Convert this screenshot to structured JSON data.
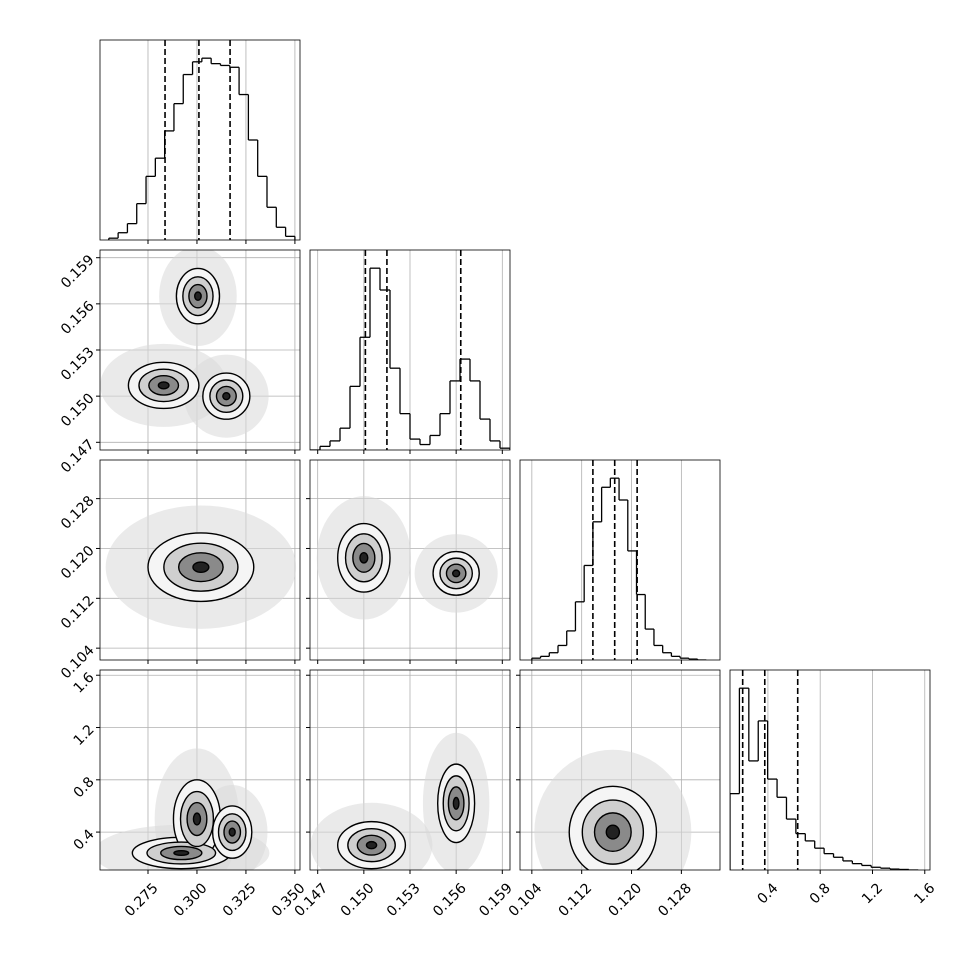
{
  "chart_data": {
    "type": "corner",
    "params": [
      {
        "lim": [
          0.2505,
          0.3526
        ],
        "ticks": [
          0.275,
          {
            "value": 0.3,
            "label": "0.300"
          },
          0.325,
          {
            "value": 0.35,
            "label": "0.350"
          }
        ]
      },
      {
        "lim": [
          0.1465,
          0.1595
        ],
        "ticks": [
          0.147,
          {
            "value": 0.15,
            "label": "0.150"
          },
          0.153,
          0.156,
          0.159
        ]
      },
      {
        "lim": [
          0.1021,
          0.1342
        ],
        "ticks": [
          0.104,
          0.112,
          {
            "value": 0.12,
            "label": "0.120"
          },
          0.128
        ]
      },
      {
        "lim": [
          0.11,
          1.64
        ],
        "ticks": [
          0.4,
          0.8,
          1.2,
          1.6
        ]
      }
    ],
    "histograms": [
      {
        "ylim": [
          0,
          1.1
        ],
        "bins": [
          0.255,
          0.25975,
          0.2645,
          0.26925,
          0.274,
          0.27875,
          0.2835,
          0.28825,
          0.293,
          0.29775,
          0.3025,
          0.30725,
          0.312,
          0.31675,
          0.3215,
          0.32625,
          0.331,
          0.33575,
          0.3405,
          0.34525,
          0.35
        ],
        "counts": [
          0.01,
          0.04,
          0.09,
          0.2,
          0.35,
          0.45,
          0.6,
          0.75,
          0.91,
          0.98,
          1.0,
          0.97,
          0.96,
          0.95,
          0.8,
          0.55,
          0.35,
          0.18,
          0.07,
          0.02
        ],
        "quantiles": [
          0.2837,
          0.301,
          0.3169
        ]
      },
      {
        "ylim": [
          0,
          1.1
        ],
        "bins": [
          0.1465,
          0.14715,
          0.1478,
          0.14845,
          0.1491,
          0.14975,
          0.1504,
          0.15105,
          0.1517,
          0.15235,
          0.153,
          0.15365,
          0.1543,
          0.15495,
          0.1556,
          0.15625,
          0.1569,
          0.15755,
          0.1582,
          0.15885,
          0.1595
        ],
        "counts": [
          0.0,
          0.02,
          0.05,
          0.12,
          0.35,
          0.62,
          1.0,
          0.88,
          0.45,
          0.2,
          0.06,
          0.03,
          0.08,
          0.2,
          0.38,
          0.5,
          0.38,
          0.17,
          0.05,
          0.01
        ],
        "quantiles": [
          0.1501,
          0.1515,
          0.1563
        ]
      },
      {
        "ylim": [
          0,
          1.1
        ],
        "bins": [
          0.104,
          0.1054,
          0.1068,
          0.1082,
          0.1096,
          0.111,
          0.1124,
          0.1138,
          0.1152,
          0.1166,
          0.118,
          0.1194,
          0.1208,
          0.1222,
          0.1236,
          0.125,
          0.1264,
          0.1278,
          0.1292,
          0.1306,
          0.132
        ],
        "counts": [
          0.01,
          0.02,
          0.04,
          0.08,
          0.16,
          0.32,
          0.52,
          0.76,
          0.95,
          1.0,
          0.88,
          0.6,
          0.36,
          0.17,
          0.08,
          0.04,
          0.02,
          0.01,
          0.005,
          0.0
        ],
        "quantiles": [
          0.1138,
          0.1173,
          0.1209
        ]
      },
      {
        "ylim": [
          0,
          1.1
        ],
        "bins": [
          0.11,
          0.182,
          0.254,
          0.326,
          0.398,
          0.47,
          0.542,
          0.614,
          0.686,
          0.758,
          0.83,
          0.902,
          0.974,
          1.046,
          1.118,
          1.19,
          1.262,
          1.334,
          1.406,
          1.478,
          1.55
        ],
        "counts": [
          0.42,
          1.0,
          0.6,
          0.82,
          0.5,
          0.4,
          0.28,
          0.2,
          0.16,
          0.12,
          0.09,
          0.07,
          0.05,
          0.035,
          0.025,
          0.015,
          0.01,
          0.005,
          0.003,
          0.0
        ],
        "quantiles": [
          0.207,
          0.376,
          0.628
        ]
      }
    ],
    "pairs": [
      {
        "x_param": 0,
        "y_param": 1,
        "blobs": [
          {
            "x": 0.3005,
            "y": 0.1565,
            "rx": 0.011,
            "ry": 0.0018
          },
          {
            "x": 0.283,
            "y": 0.1507,
            "rx": 0.018,
            "ry": 0.0015
          },
          {
            "x": 0.315,
            "y": 0.15,
            "rx": 0.012,
            "ry": 0.0015
          }
        ]
      },
      {
        "x_param": 0,
        "y_param": 2,
        "blobs": [
          {
            "x": 0.302,
            "y": 0.117,
            "rx": 0.027,
            "ry": 0.0055
          }
        ]
      },
      {
        "x_param": 1,
        "y_param": 2,
        "blobs": [
          {
            "x": 0.15,
            "y": 0.1185,
            "rx": 0.0017,
            "ry": 0.0055
          },
          {
            "x": 0.156,
            "y": 0.116,
            "rx": 0.0015,
            "ry": 0.0035
          }
        ]
      },
      {
        "x_param": 0,
        "y_param": 3,
        "blobs": [
          {
            "x": 0.292,
            "y": 0.24,
            "rx": 0.025,
            "ry": 0.12
          },
          {
            "x": 0.3,
            "y": 0.5,
            "rx": 0.012,
            "ry": 0.3
          },
          {
            "x": 0.318,
            "y": 0.4,
            "rx": 0.01,
            "ry": 0.2
          }
        ]
      },
      {
        "x_param": 1,
        "y_param": 3,
        "blobs": [
          {
            "x": 0.1505,
            "y": 0.3,
            "rx": 0.0022,
            "ry": 0.18
          },
          {
            "x": 0.156,
            "y": 0.62,
            "rx": 0.0012,
            "ry": 0.3
          }
        ]
      },
      {
        "x_param": 2,
        "y_param": 3,
        "blobs": [
          {
            "x": 0.117,
            "y": 0.4,
            "rx": 0.007,
            "ry": 0.35
          }
        ]
      }
    ]
  }
}
